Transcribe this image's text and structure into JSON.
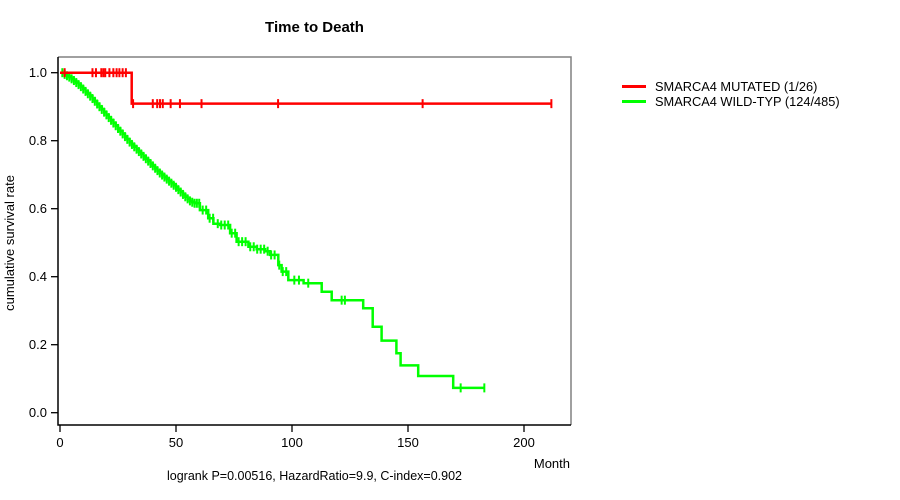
{
  "chart_data": {
    "type": "line",
    "subtype": "kaplan_meier_step",
    "title": "Time to Death",
    "xlabel": "Month",
    "ylabel": "cumulative survival rate",
    "annotation": "logrank P=0.00516, HazardRatio=9.9, C-index=0.902",
    "xlim": [
      0,
      220
    ],
    "ylim": [
      0,
      1.0
    ],
    "x_ticks": [
      0,
      50,
      100,
      150,
      200
    ],
    "y_ticks": [
      0.0,
      0.2,
      0.4,
      0.6,
      0.8,
      1.0
    ],
    "grid": false,
    "legend_position": "right-outside",
    "series": [
      {
        "name": "SMARCA4 WILD-TYP (124/485)",
        "color": "#00ff00",
        "points": [
          [
            0,
            1.0
          ],
          [
            2,
            0.995
          ],
          [
            3,
            0.991
          ],
          [
            4,
            0.987
          ],
          [
            5,
            0.982
          ],
          [
            6,
            0.977
          ],
          [
            7,
            0.971
          ],
          [
            8,
            0.965
          ],
          [
            9,
            0.959
          ],
          [
            10,
            0.952
          ],
          [
            11,
            0.945
          ],
          [
            12,
            0.938
          ],
          [
            13,
            0.931
          ],
          [
            14,
            0.924
          ],
          [
            15,
            0.916
          ],
          [
            16,
            0.908
          ],
          [
            17,
            0.9
          ],
          [
            18,
            0.892
          ],
          [
            19,
            0.884
          ],
          [
            20,
            0.876
          ],
          [
            21,
            0.868
          ],
          [
            22,
            0.86
          ],
          [
            23,
            0.852
          ],
          [
            24,
            0.844
          ],
          [
            25,
            0.836
          ],
          [
            26,
            0.828
          ],
          [
            27,
            0.82
          ],
          [
            28,
            0.812
          ],
          [
            29,
            0.804
          ],
          [
            30,
            0.796
          ],
          [
            31,
            0.789
          ],
          [
            32,
            0.782
          ],
          [
            33,
            0.775
          ],
          [
            34,
            0.768
          ],
          [
            35,
            0.761
          ],
          [
            36,
            0.754
          ],
          [
            37,
            0.747
          ],
          [
            38,
            0.74
          ],
          [
            39,
            0.733
          ],
          [
            40,
            0.726
          ],
          [
            41,
            0.719
          ],
          [
            42,
            0.712
          ],
          [
            43,
            0.705
          ],
          [
            44,
            0.699
          ],
          [
            45,
            0.693
          ],
          [
            46,
            0.687
          ],
          [
            47,
            0.681
          ],
          [
            48,
            0.675
          ],
          [
            49,
            0.669
          ],
          [
            50,
            0.663
          ],
          [
            51,
            0.656
          ],
          [
            52,
            0.649
          ],
          [
            53,
            0.642
          ],
          [
            54,
            0.635
          ],
          [
            55,
            0.629
          ],
          [
            56,
            0.623
          ],
          [
            57,
            0.619
          ],
          [
            58,
            0.616
          ],
          [
            60.3,
            0.596
          ],
          [
            63.9,
            0.572
          ],
          [
            66.1,
            0.556
          ],
          [
            69,
            0.552
          ],
          [
            73.3,
            0.528
          ],
          [
            76.1,
            0.503
          ],
          [
            81.2,
            0.488
          ],
          [
            84.8,
            0.481
          ],
          [
            88.4,
            0.475
          ],
          [
            90.5,
            0.464
          ],
          [
            94.1,
            0.434
          ],
          [
            95.5,
            0.415
          ],
          [
            98.4,
            0.39
          ],
          [
            105,
            0.381
          ],
          [
            112.8,
            0.356
          ],
          [
            117.1,
            0.331
          ],
          [
            130.7,
            0.307
          ],
          [
            134.8,
            0.253
          ],
          [
            138.6,
            0.212
          ],
          [
            145,
            0.175
          ],
          [
            146.8,
            0.139
          ],
          [
            154.4,
            0.108
          ],
          [
            169.5,
            0.073
          ],
          [
            183,
            0.073
          ]
        ],
        "censor_marks": [
          1,
          2,
          3,
          4,
          5,
          6,
          7,
          8,
          9,
          10,
          11,
          12,
          13,
          14,
          15,
          16,
          17,
          18,
          19,
          20,
          21,
          22,
          23,
          24,
          25,
          26,
          27,
          28,
          29,
          30,
          31,
          32,
          33,
          34,
          35,
          36,
          37,
          38,
          39,
          40,
          41,
          42,
          43,
          44,
          45,
          46,
          47,
          48,
          49,
          50,
          51,
          52,
          53,
          54,
          55,
          56,
          57,
          58,
          59,
          60,
          61.5,
          63,
          64.5,
          66,
          68,
          69.5,
          71,
          72.5,
          74,
          75.5,
          77,
          78.5,
          80,
          82,
          83.5,
          85,
          86.5,
          88,
          89.5,
          91,
          92.5,
          94.5,
          96,
          97.5,
          101,
          103,
          107,
          121.4,
          122.8,
          172.7,
          182.9
        ]
      },
      {
        "name": "SMARCA4 MUTATED (1/26)",
        "color": "#ff0000",
        "points": [
          [
            0,
            1.0
          ],
          [
            30.9,
            0.909
          ],
          [
            211.8,
            0.909
          ]
        ],
        "censor_marks": [
          2,
          14,
          15.5,
          17.8,
          18.7,
          19.5,
          21.3,
          23,
          24.4,
          25.6,
          27,
          28.4,
          31.5,
          40,
          41.9,
          43.1,
          44.3,
          47.7,
          51.7,
          61,
          94,
          156.3,
          211.8
        ]
      }
    ],
    "legend_order": [
      1,
      0
    ],
    "frame_color": "#808080",
    "axis_color": "#000000"
  }
}
